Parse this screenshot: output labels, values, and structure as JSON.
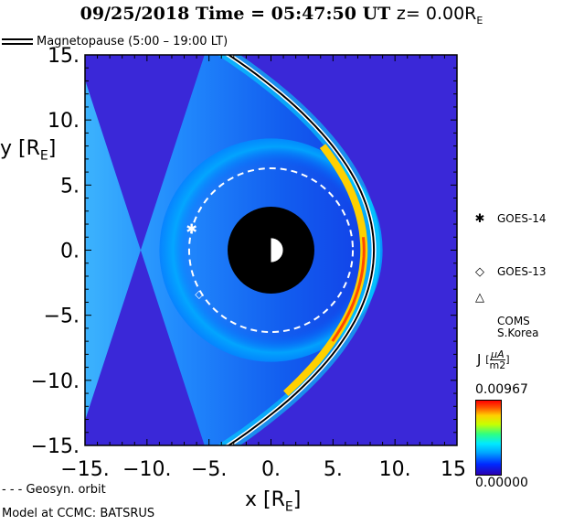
{
  "header": {
    "title": "09/25/2018 Time = 05:47:50 UT",
    "z_label": "z= 0.00R",
    "z_sub": "E"
  },
  "legend": {
    "magnetopause": "Magnetopause (5:00 – 19:00 LT)",
    "geosyn_orbit": "- - - Geosyn. orbit",
    "model": "Model at CCMC: BATSRUS"
  },
  "satellites": [
    {
      "symbol": "✱",
      "name": "GOES-14",
      "x": -6.4,
      "y": 1.6
    },
    {
      "symbol": "◇",
      "name": "GOES-13",
      "x": -5.8,
      "y": -3.3
    },
    {
      "symbol": "△",
      "name": "COMS\nS.Korea"
    }
  ],
  "colorbar": {
    "label": "J",
    "unit_num": "μA",
    "unit_den": "m2",
    "max": "0.00967",
    "min": "0.00000",
    "colors": [
      "#2a00b0",
      "#0028ff",
      "#00a8ff",
      "#00eaff",
      "#30ff80",
      "#c8ff00",
      "#ffd000",
      "#ff5a00",
      "#ff0000"
    ]
  },
  "chart_data": {
    "type": "heatmap",
    "xlabel": "x [R",
    "xlabel_sub": "E",
    "ylabel": "y [R",
    "ylabel_sub": "E",
    "xlim": [
      -15,
      15
    ],
    "ylim": [
      -15,
      15
    ],
    "x_ticks": [
      "-15.",
      "-10.",
      "-5.",
      "0.",
      "5.",
      "10.",
      "15"
    ],
    "y_ticks": [
      "15.",
      "10.",
      "5.",
      "0.",
      "-5.",
      "-10.",
      "-15."
    ],
    "earth_radius": 1.0,
    "inner_boundary_radius": 3.5,
    "geosynchronous_radius": 6.6,
    "magnetopause_standoff": 8.3,
    "background_color": "#3a28d8"
  }
}
